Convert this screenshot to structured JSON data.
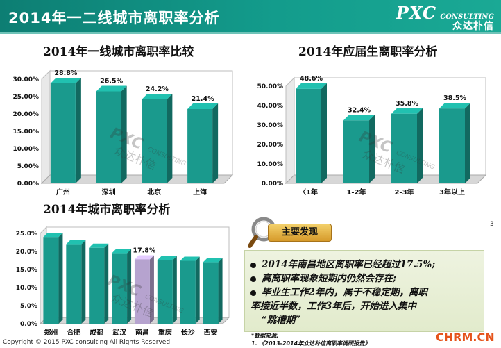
{
  "header": {
    "title": "2014年一二线城市离职率分析",
    "logo_main": "PXC",
    "logo_sub": "CONSULTING",
    "logo_cn": "众达朴信"
  },
  "watermark": {
    "main": "PXC",
    "sub": "CONSULTING",
    "cn": "众达朴信"
  },
  "chart_data": [
    {
      "type": "bar",
      "title": "2014年一线城市离职率比较",
      "categories": [
        "广州",
        "深圳",
        "北京",
        "上海"
      ],
      "values": [
        28.8,
        26.5,
        24.2,
        21.4
      ],
      "value_labels": [
        "28.8%",
        "26.5%",
        "24.2%",
        "21.4%"
      ],
      "yticks": [
        "0.00%",
        "5.00%",
        "10.00%",
        "15.00%",
        "20.00%",
        "25.00%",
        "30.00%"
      ],
      "ylim": [
        0,
        30
      ],
      "grid": false,
      "bar_color": "#1a9a8d"
    },
    {
      "type": "bar",
      "title": "2014年应届生离职率分析",
      "categories": [
        "〈1年",
        "1-2年",
        "2-3年",
        "3年以上"
      ],
      "values": [
        48.6,
        32.4,
        35.8,
        38.5
      ],
      "value_labels": [
        "48.6%",
        "32.4%",
        "35.8%",
        "38.5%"
      ],
      "yticks": [
        "0.00%",
        "10.00%",
        "20.00%",
        "30.00%",
        "40.00%",
        "50.00%"
      ],
      "ylim": [
        0,
        50
      ],
      "grid": false,
      "bar_color": "#1a9a8d"
    },
    {
      "type": "bar",
      "title": "2014年城市离职率分析",
      "categories": [
        "郑州",
        "合肥",
        "成都",
        "武汉",
        "南昌",
        "重庆",
        "长沙",
        "西安"
      ],
      "values": [
        24.0,
        22.0,
        21.0,
        19.5,
        17.8,
        17.6,
        17.4,
        17.0
      ],
      "value_labels": [
        "",
        "",
        "",
        "",
        "17.8%",
        "",
        "",
        ""
      ],
      "highlight_index": 4,
      "yticks": [
        "0.0%",
        "5.0%",
        "10.0%",
        "15.0%",
        "20.0%",
        "25.0%"
      ],
      "ylim": [
        0,
        25
      ],
      "grid": false,
      "bar_color": "#1a9a8d",
      "highlight_color": "#b6a3cf"
    }
  ],
  "findings": {
    "badge": "主要发现",
    "items": [
      "2014年南昌地区离职率已经超过17.5%;",
      "高离职率现象短期内仍然会存在;",
      "毕业生工作2年内，属于不稳定期，离职",
      "率接近半数，工作3年后，开始进入集中",
      "“跳槽期”"
    ]
  },
  "notes": {
    "title": "*数据来源:",
    "line": "1.      《2013-2014年众达朴信离职率调研报告》"
  },
  "footer": {
    "copyright": "Copyright © 2015  PXC consulting All Rights Reserved",
    "site": "CHRM.CN",
    "page_mark": "3"
  },
  "colors": {
    "header": "#139c8c",
    "bar": "#1a9a8d",
    "highlight": "#b6a3cf",
    "site": "#e5531a"
  }
}
